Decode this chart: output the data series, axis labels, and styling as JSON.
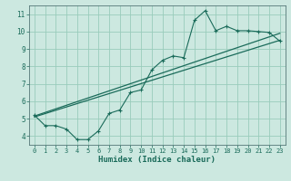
{
  "xlabel": "Humidex (Indice chaleur)",
  "bg_color": "#cce8e0",
  "grid_color": "#99ccbb",
  "line_color": "#1a6b5a",
  "xlim": [
    -0.5,
    23.5
  ],
  "ylim": [
    3.5,
    11.5
  ],
  "xticks": [
    0,
    1,
    2,
    3,
    4,
    5,
    6,
    7,
    8,
    9,
    10,
    11,
    12,
    13,
    14,
    15,
    16,
    17,
    18,
    19,
    20,
    21,
    22,
    23
  ],
  "yticks": [
    4,
    5,
    6,
    7,
    8,
    9,
    10,
    11
  ],
  "line1_x": [
    0,
    1,
    2,
    3,
    4,
    5,
    6,
    7,
    8,
    9,
    10,
    11,
    12,
    13,
    14,
    15,
    16,
    17,
    18,
    19,
    20,
    21,
    22,
    23
  ],
  "line1_y": [
    5.2,
    4.6,
    4.6,
    4.4,
    3.8,
    3.8,
    4.3,
    5.3,
    5.5,
    6.5,
    6.65,
    7.8,
    8.35,
    8.6,
    8.5,
    10.65,
    11.2,
    10.05,
    10.3,
    10.05,
    10.05,
    10.0,
    9.95,
    9.45
  ],
  "line2_x": [
    0,
    23
  ],
  "line2_y": [
    5.1,
    9.5
  ],
  "line3_x": [
    0,
    23
  ],
  "line3_y": [
    5.15,
    9.9
  ]
}
